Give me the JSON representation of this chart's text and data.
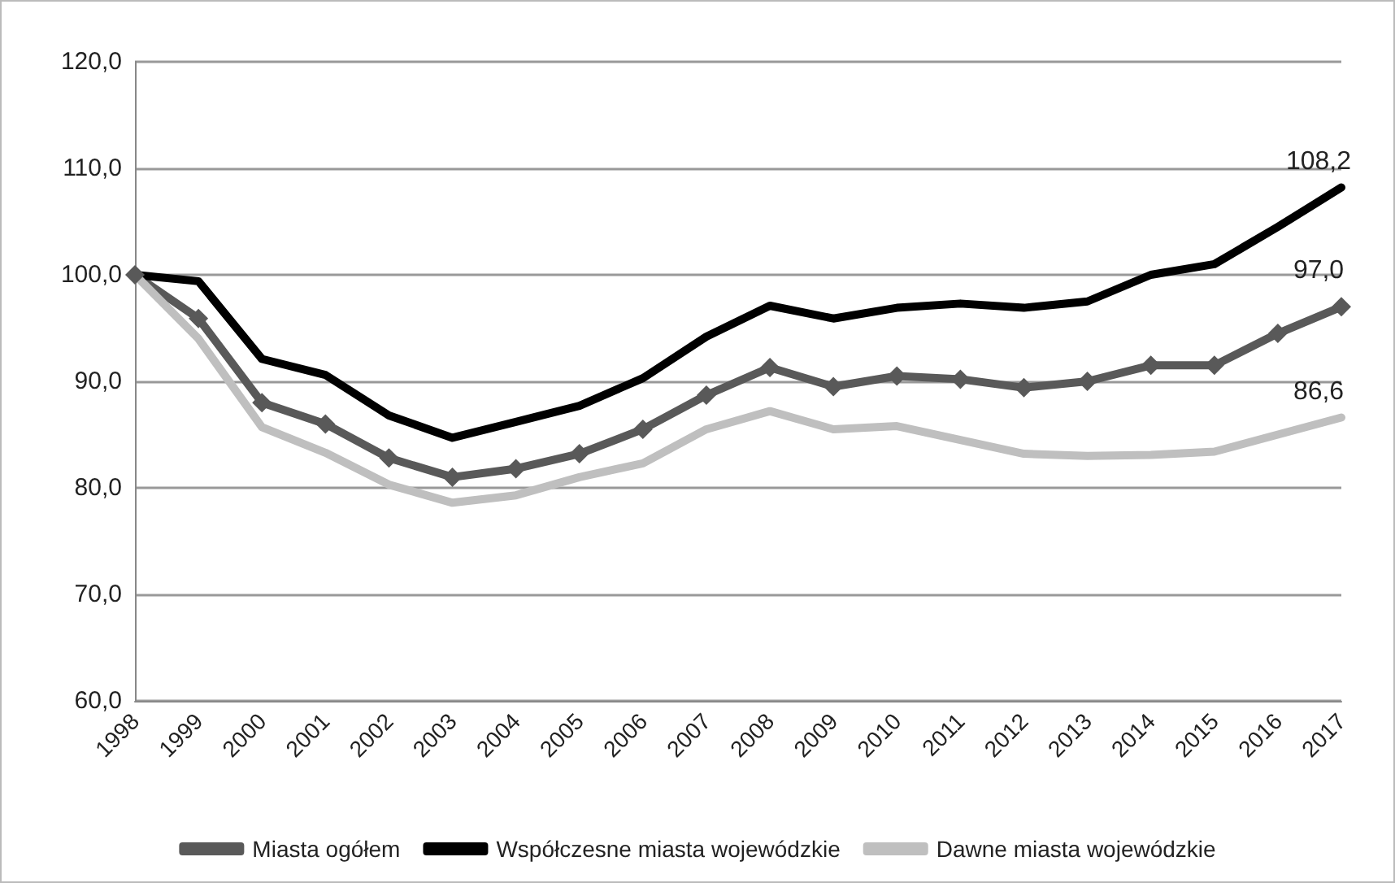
{
  "chart_data": {
    "type": "line",
    "categories": [
      "1998",
      "1999",
      "2000",
      "2001",
      "2002",
      "2003",
      "2004",
      "2005",
      "2006",
      "2007",
      "2008",
      "2009",
      "2010",
      "2011",
      "2012",
      "2013",
      "2014",
      "2015",
      "2016",
      "2017"
    ],
    "series": [
      {
        "name": "Miasta ogółem",
        "color": "#595959",
        "marker": "diamond",
        "values": [
          100,
          95.9,
          88,
          86,
          82.8,
          81,
          81.8,
          83.2,
          85.5,
          88.7,
          91.3,
          89.5,
          90.5,
          90.2,
          89.4,
          90,
          91.5,
          91.5,
          94.5,
          97.0
        ],
        "value_labels": [
          null,
          null,
          null,
          null,
          null,
          null,
          null,
          null,
          null,
          null,
          null,
          null,
          null,
          null,
          null,
          null,
          null,
          null,
          null,
          "97,0"
        ]
      },
      {
        "name": "Współczesne miasta wojewódzkie",
        "color": "#000000",
        "marker": "none",
        "values": [
          100,
          99.4,
          92.1,
          90.6,
          86.8,
          84.7,
          86.2,
          87.7,
          90.3,
          94.2,
          97.1,
          95.9,
          96.9,
          97.3,
          96.9,
          97.5,
          100,
          101,
          104.5,
          108.2
        ],
        "value_labels": [
          null,
          null,
          null,
          null,
          null,
          null,
          null,
          null,
          null,
          null,
          null,
          null,
          null,
          null,
          null,
          null,
          null,
          null,
          null,
          "108,2"
        ]
      },
      {
        "name": "Dawne miasta wojewódzkie",
        "color": "#bfbfbf",
        "marker": "none",
        "values": [
          100,
          94,
          85.7,
          83.3,
          80.3,
          78.6,
          79.3,
          81,
          82.3,
          85.5,
          87.2,
          85.5,
          85.8,
          84.5,
          83.2,
          83,
          83.1,
          83.4,
          85,
          86.6
        ],
        "value_labels": [
          null,
          null,
          null,
          null,
          null,
          null,
          null,
          null,
          null,
          null,
          null,
          null,
          null,
          null,
          null,
          null,
          null,
          null,
          null,
          "86,6"
        ]
      }
    ],
    "ylim": [
      60,
      120
    ],
    "yticks": [
      {
        "value": 60,
        "label": "60,0"
      },
      {
        "value": 70,
        "label": "70,0"
      },
      {
        "value": 80,
        "label": "80,0"
      },
      {
        "value": 90,
        "label": "90,0"
      },
      {
        "value": 100,
        "label": "100,0"
      },
      {
        "value": 110,
        "label": "110,0"
      },
      {
        "value": 120,
        "label": "120,0"
      }
    ],
    "grid": "y",
    "legend": "bottom",
    "line_style": "solid"
  }
}
